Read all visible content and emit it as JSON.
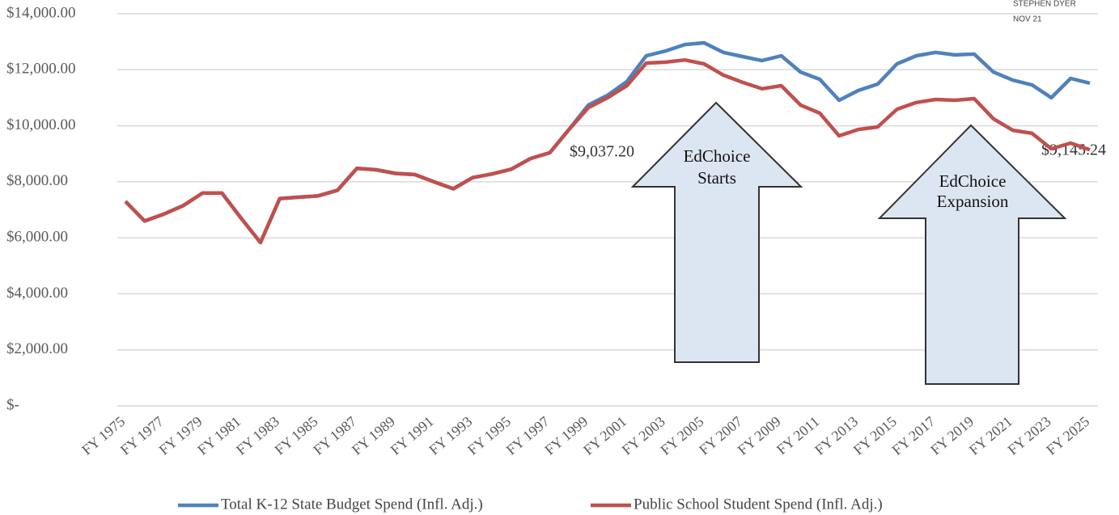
{
  "chart_data": {
    "type": "line",
    "credit": [
      "STEPHEN DYER",
      "NOV 21"
    ],
    "categories": [
      "FY 1975",
      null,
      "FY 1977",
      null,
      "FY 1979",
      null,
      "FY 1981",
      null,
      "FY 1983",
      null,
      "FY 1985",
      null,
      "FY 1987",
      null,
      "FY 1989",
      null,
      "FY 1991",
      null,
      "FY 1993",
      null,
      "FY 1995",
      null,
      "FY 1997",
      null,
      "FY 1999",
      null,
      "FY 2001",
      null,
      "FY 2003",
      null,
      "FY 2005",
      null,
      "FY 2007",
      null,
      "FY 2009",
      null,
      "FY 2011",
      null,
      "FY 2013",
      null,
      "FY 2015",
      null,
      "FY 2017",
      null,
      "FY 2019",
      null,
      "FY 2021",
      null,
      "FY 2023",
      null,
      "FY 2025"
    ],
    "series": [
      {
        "name": "Total K-12 State Budget Spend (Infl. Adj.)",
        "color": "#4f81bd",
        "values": [
          7300,
          6600,
          6850,
          7150,
          7600,
          7600,
          6700,
          5830,
          7400,
          7450,
          7500,
          7700,
          8480,
          8430,
          8300,
          8260,
          8000,
          7750,
          8150,
          8280,
          8450,
          8830,
          9037.2,
          9870,
          10740,
          11090,
          11580,
          12500,
          12670,
          12900,
          12960,
          12620,
          12470,
          12330,
          12500,
          11920,
          11660,
          10910,
          11260,
          11490,
          12210,
          12500,
          12620,
          12530,
          12560,
          11920,
          11630,
          11460,
          11000,
          11690,
          11520
        ]
      },
      {
        "name": "Public School Student Spend (Infl. Adj.)",
        "color": "#c0504d",
        "values": [
          7300,
          6600,
          6850,
          7150,
          7600,
          7600,
          6700,
          5830,
          7400,
          7450,
          7500,
          7700,
          8480,
          8430,
          8300,
          8260,
          8000,
          7750,
          8150,
          8280,
          8450,
          8830,
          9037.2,
          9870,
          10650,
          11000,
          11430,
          12240,
          12270,
          12350,
          12210,
          11810,
          11550,
          11320,
          11430,
          10740,
          10450,
          9640,
          9870,
          9960,
          10590,
          10830,
          10940,
          10910,
          10970,
          10250,
          9840,
          9730,
          9180,
          9380,
          9145.24
        ]
      }
    ],
    "value_annotations": [
      "$9,037.20",
      "$9,145.24"
    ],
    "arrow_labels": [
      [
        "EdChoice",
        "Starts"
      ],
      [
        "EdChoice",
        "Expansion"
      ]
    ],
    "ylim": [
      0,
      14000
    ],
    "yticks": [
      {
        "value": 0,
        "label": "$-"
      },
      {
        "value": 2000,
        "label": "$2,000.00"
      },
      {
        "value": 4000,
        "label": "$4,000.00"
      },
      {
        "value": 6000,
        "label": "$6,000.00"
      },
      {
        "value": 8000,
        "label": "$8,000.00"
      },
      {
        "value": 10000,
        "label": "$10,000.00"
      },
      {
        "value": 12000,
        "label": "$12,000.00"
      },
      {
        "value": 14000,
        "label": "$14,000.00"
      }
    ],
    "grid": true,
    "legend": "bottom"
  }
}
